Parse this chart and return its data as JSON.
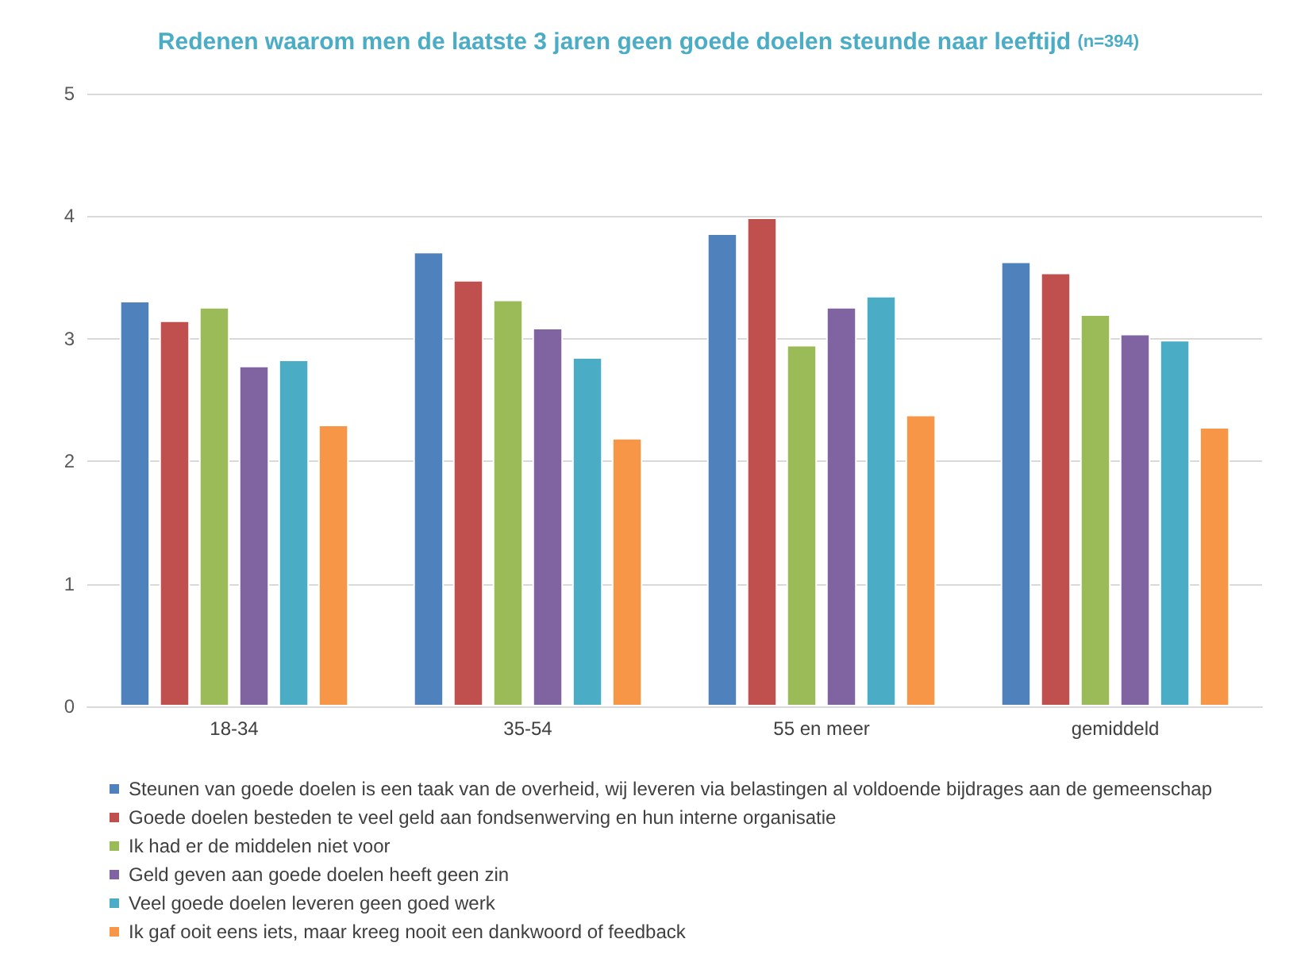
{
  "chart_data": {
    "type": "bar",
    "title": "Redenen waarom men de laatste 3 jaren geen goede doelen steunde naar leeftijd",
    "subtitle": "(n=394)",
    "categories": [
      "18-34",
      "35-54",
      "55 en meer",
      "gemiddeld"
    ],
    "series": [
      {
        "name": "Steunen van goede doelen is een taak van de overheid, wij leveren via belastingen al voldoende bijdrages aan de gemeenschap",
        "color": "#4f81bd",
        "values": [
          3.31,
          3.71,
          3.86,
          3.63
        ]
      },
      {
        "name": "Goede doelen besteden te veel geld aan fondsenwerving en hun interne organisatie",
        "color": "#c0504d",
        "values": [
          3.15,
          3.48,
          3.99,
          3.54
        ]
      },
      {
        "name": "Ik had er de middelen niet voor",
        "color": "#9bbb59",
        "values": [
          3.26,
          3.32,
          2.95,
          3.2
        ]
      },
      {
        "name": "Geld geven aan goede doelen heeft geen zin",
        "color": "#8064a2",
        "values": [
          2.78,
          3.09,
          3.26,
          3.04
        ]
      },
      {
        "name": "Veel goede doelen leveren geen goed werk",
        "color": "#4bacc6",
        "values": [
          2.83,
          2.85,
          3.35,
          2.99
        ]
      },
      {
        "name": "Ik gaf ooit eens iets, maar kreeg nooit een dankwoord of feedback",
        "color": "#f79646",
        "values": [
          2.3,
          2.19,
          2.38,
          2.28
        ]
      }
    ],
    "ylim": [
      0,
      5
    ],
    "yticks": [
      0,
      1,
      2,
      3,
      4,
      5
    ],
    "grid": "y",
    "legend": "bottom"
  }
}
